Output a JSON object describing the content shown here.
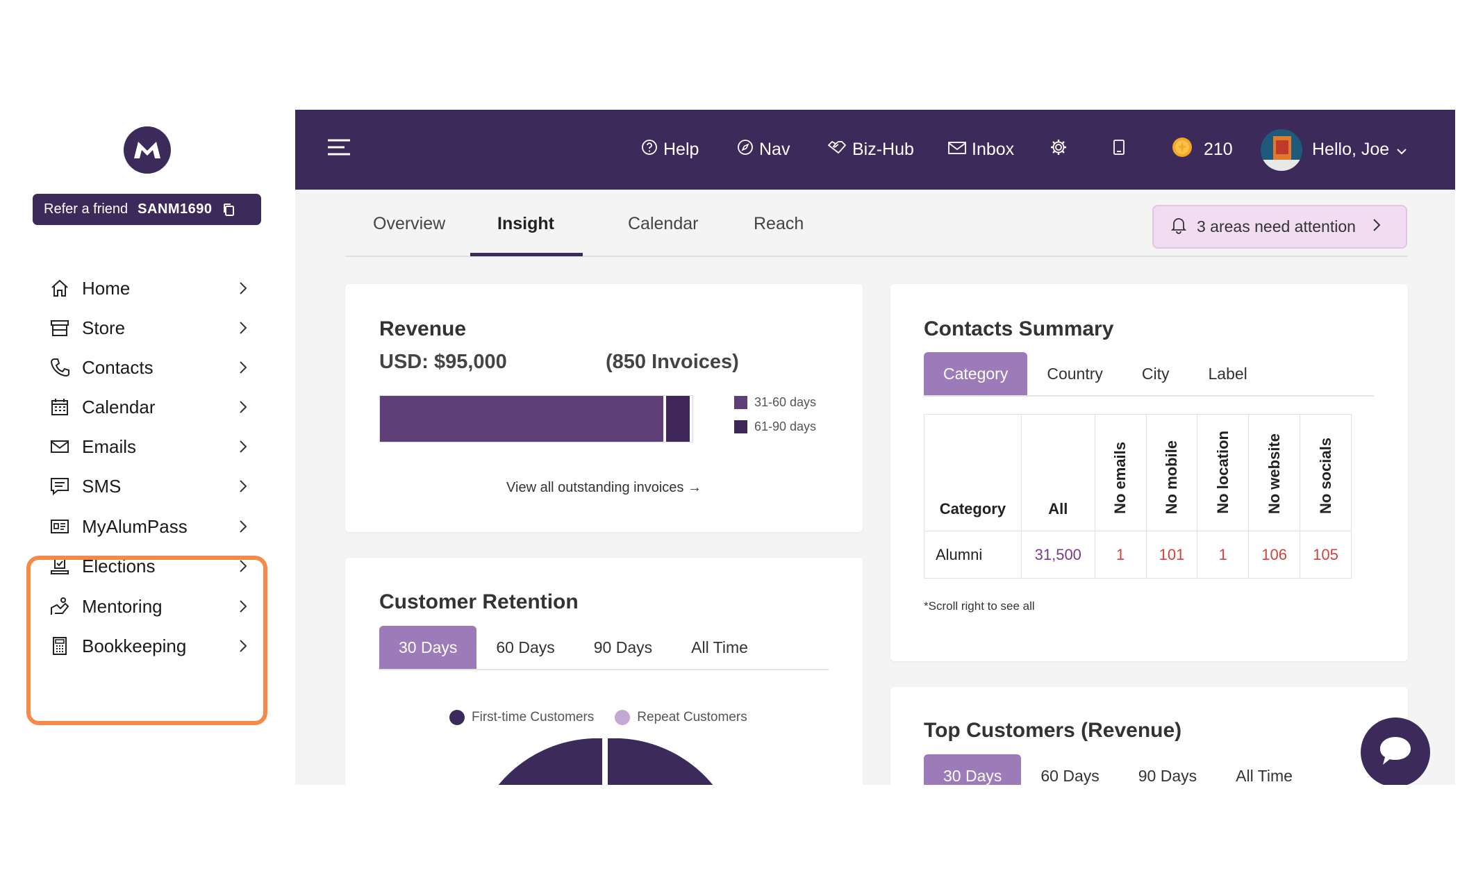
{
  "sidebar": {
    "logo_icon": "m-logo-icon",
    "refer": {
      "label": "Refer a friend",
      "code": "SANM1690"
    },
    "items": [
      {
        "label": "Home",
        "icon": "home-icon"
      },
      {
        "label": "Store",
        "icon": "store-icon"
      },
      {
        "label": "Contacts",
        "icon": "phone-icon"
      },
      {
        "label": "Calendar",
        "icon": "calendar-icon"
      },
      {
        "label": "Emails",
        "icon": "mail-icon"
      },
      {
        "label": "SMS",
        "icon": "message-icon"
      },
      {
        "label": "MyAlumPass",
        "icon": "id-card-icon"
      },
      {
        "label": "Elections",
        "icon": "ballot-icon"
      },
      {
        "label": "Mentoring",
        "icon": "mentoring-icon"
      },
      {
        "label": "Bookkeeping",
        "icon": "calculator-icon"
      }
    ],
    "highlight_color": "#f6894a"
  },
  "topbar": {
    "help": "Help",
    "nav": "Nav",
    "bizhub": "Biz-Hub",
    "inbox": "Inbox",
    "coins": "210",
    "greeting": "Hello, Joe"
  },
  "tabs": [
    "Overview",
    "Insight",
    "Calendar",
    "Reach"
  ],
  "attention": "3 areas need attention",
  "revenue": {
    "title": "Revenue",
    "amount": "USD: $95,000",
    "invoices": "(850 Invoices)",
    "legend": [
      "31-60 days",
      "61-90 days"
    ],
    "segments": [
      0.91,
      0.09
    ],
    "view_all": "View all outstanding invoices →"
  },
  "retention": {
    "title": "Customer Retention",
    "tabs": [
      "30 Days",
      "60 Days",
      "90 Days",
      "All Time"
    ],
    "legend": [
      "First-time Customers",
      "Repeat Customers"
    ]
  },
  "contacts": {
    "title": "Contacts Summary",
    "tabs": [
      "Category",
      "Country",
      "City",
      "Label"
    ],
    "headers": [
      "Category",
      "All",
      "No emails",
      "No mobile",
      "No location",
      "No website",
      "No socials"
    ],
    "row": [
      "Alumni",
      "31,500",
      "1",
      "101",
      "1",
      "106",
      "105"
    ],
    "note": "*Scroll right to see all"
  },
  "top_customers": {
    "title": "Top Customers (Revenue)",
    "tabs": [
      "30 Days",
      "60 Days",
      "90 Days",
      "All Time"
    ]
  },
  "colors": {
    "brand": "#3b2a5a",
    "accent": "#9d7ab8",
    "bar": "#5e3f78",
    "alert": "#d4413c"
  }
}
